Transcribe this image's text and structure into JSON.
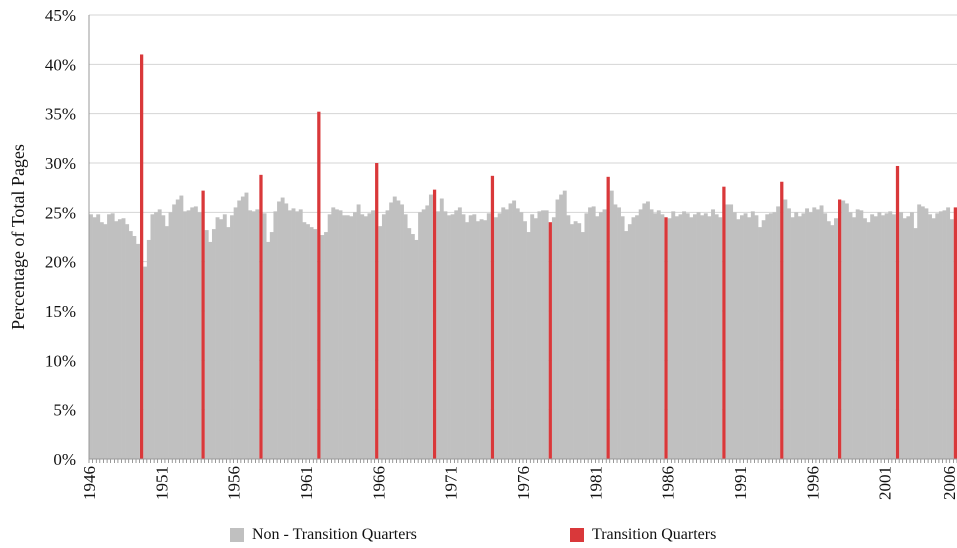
{
  "chart_data": {
    "type": "bar",
    "title": "",
    "xlabel": "",
    "ylabel": "Percentage of Total Pages",
    "ylim": [
      0,
      45
    ],
    "yticks": [
      "0%",
      "5%",
      "10%",
      "15%",
      "20%",
      "25%",
      "30%",
      "35%",
      "40%",
      "45%"
    ],
    "ytick_values": [
      0,
      5,
      10,
      15,
      20,
      25,
      30,
      35,
      40,
      45
    ],
    "xticks": [
      "1946",
      "1951",
      "1956",
      "1961",
      "1966",
      "1971",
      "1976",
      "1981",
      "1986",
      "1991",
      "1996",
      "2001",
      "2006"
    ],
    "x_start_year": 1946,
    "x_end_year": 2006,
    "quarters_per_year": 4,
    "grid": true,
    "legend_position": "bottom",
    "colors": {
      "non_transition": "#c0c0c0",
      "transition": "#d9383a",
      "grid": "#d4d4d4",
      "axis": "#999999"
    },
    "series": [
      {
        "name": "Non - Transition Quarters",
        "color": "#c0c0c0",
        "values": [
          24.8,
          24.5,
          24.8,
          24.0,
          23.8,
          24.8,
          24.9,
          24.1,
          24.3,
          24.4,
          23.8,
          23.1,
          22.6,
          21.8,
          0,
          19.5,
          22.2,
          24.8,
          25.0,
          25.3,
          24.7,
          23.6,
          25.0,
          25.8,
          26.3,
          26.7,
          25.1,
          25.2,
          25.5,
          25.6,
          25.0,
          0,
          23.2,
          22.0,
          23.3,
          24.5,
          24.3,
          24.8,
          23.5,
          24.7,
          25.5,
          26.2,
          26.6,
          27.0,
          25.2,
          25.1,
          25.3,
          0,
          24.9,
          22.0,
          23.0,
          25.1,
          26.1,
          26.5,
          25.9,
          25.2,
          25.4,
          25.1,
          25.3,
          24.0,
          23.8,
          23.5,
          23.3,
          0,
          22.7,
          23.0,
          24.8,
          25.5,
          25.3,
          25.2,
          24.7,
          24.7,
          24.6,
          25.0,
          25.8,
          24.8,
          24.6,
          24.9,
          25.2,
          0,
          23.6,
          24.8,
          25.2,
          26.0,
          26.6,
          26.2,
          25.8,
          24.8,
          23.4,
          22.8,
          22.2,
          25.0,
          25.3,
          25.7,
          26.8,
          0,
          25.1,
          26.4,
          25.1,
          24.7,
          24.8,
          25.2,
          25.5,
          24.8,
          24.0,
          24.7,
          24.8,
          24.1,
          24.3,
          24.2,
          24.9,
          0,
          24.5,
          24.9,
          25.5,
          25.3,
          25.9,
          26.2,
          25.4,
          25.0,
          24.1,
          23.0,
          24.8,
          24.4,
          25.1,
          25.2,
          25.2,
          0,
          24.5,
          26.3,
          26.8,
          27.2,
          24.7,
          23.8,
          24.1,
          23.9,
          23.0,
          24.9,
          25.5,
          25.6,
          24.6,
          25.0,
          25.3,
          0,
          27.2,
          25.8,
          25.5,
          24.6,
          23.1,
          23.8,
          24.5,
          24.7,
          25.3,
          25.9,
          26.1,
          25.3,
          24.9,
          25.2,
          24.8,
          0,
          24.4,
          25.1,
          24.6,
          24.8,
          25.1,
          24.9,
          24.5,
          24.8,
          25.0,
          24.7,
          24.9,
          24.6,
          25.3,
          24.8,
          24.5,
          0,
          25.8,
          25.8,
          25.0,
          24.3,
          24.7,
          24.9,
          24.5,
          25.1,
          24.7,
          23.5,
          24.2,
          24.8,
          24.9,
          25.0,
          25.6,
          0,
          26.3,
          25.4,
          24.5,
          25.0,
          24.6,
          24.9,
          25.4,
          25.0,
          25.5,
          25.3,
          25.7,
          24.9,
          24.1,
          23.7,
          24.4,
          0,
          26.2,
          25.9,
          25.0,
          24.5,
          25.3,
          25.2,
          24.4,
          24.0,
          24.8,
          24.6,
          25.0,
          24.7,
          24.9,
          25.1,
          24.8,
          0,
          25.0,
          24.4,
          24.6,
          25.0,
          23.4,
          25.8,
          25.6,
          25.4,
          24.8,
          24.4,
          24.9,
          25.1,
          25.2,
          25.5,
          24.3,
          0,
          24.8,
          24.3,
          25.4,
          24.6
        ]
      },
      {
        "name": "Transition Quarters",
        "color": "#d9383a",
        "values": [
          0,
          0,
          0,
          0,
          0,
          0,
          0,
          0,
          0,
          0,
          0,
          0,
          0,
          0,
          41.0,
          0,
          0,
          0,
          0,
          0,
          0,
          0,
          0,
          0,
          0,
          0,
          0,
          0,
          0,
          0,
          0,
          27.2,
          0,
          0,
          0,
          0,
          0,
          0,
          0,
          0,
          0,
          0,
          0,
          0,
          0,
          0,
          0,
          28.8,
          0,
          0,
          0,
          0,
          0,
          0,
          0,
          0,
          0,
          0,
          0,
          0,
          0,
          0,
          0,
          35.2,
          0,
          0,
          0,
          0,
          0,
          0,
          0,
          0,
          0,
          0,
          0,
          0,
          0,
          0,
          0,
          30.0,
          0,
          0,
          0,
          0,
          0,
          0,
          0,
          0,
          0,
          0,
          0,
          0,
          0,
          0,
          0,
          27.3,
          0,
          0,
          0,
          0,
          0,
          0,
          0,
          0,
          0,
          0,
          0,
          0,
          0,
          0,
          0,
          28.7,
          0,
          0,
          0,
          0,
          0,
          0,
          0,
          0,
          0,
          0,
          0,
          0,
          0,
          0,
          0,
          24.0,
          0,
          0,
          0,
          0,
          0,
          0,
          0,
          0,
          0,
          0,
          0,
          0,
          0,
          0,
          0,
          28.6,
          0,
          0,
          0,
          0,
          0,
          0,
          0,
          0,
          0,
          0,
          0,
          0,
          0,
          0,
          0,
          24.5,
          0,
          0,
          0,
          0,
          0,
          0,
          0,
          0,
          0,
          0,
          0,
          0,
          0,
          0,
          0,
          27.6,
          0,
          0,
          0,
          0,
          0,
          0,
          0,
          0,
          0,
          0,
          0,
          0,
          0,
          0,
          0,
          28.1,
          0,
          0,
          0,
          0,
          0,
          0,
          0,
          0,
          0,
          0,
          0,
          0,
          0,
          0,
          0,
          26.3,
          0,
          0,
          0,
          0,
          0,
          0,
          0,
          0,
          0,
          0,
          0,
          0,
          0,
          0,
          0,
          29.7,
          0,
          0,
          0,
          0,
          0,
          0,
          0,
          0,
          0,
          0,
          0,
          0,
          0,
          0,
          0,
          25.5,
          0,
          0,
          0,
          0
        ]
      }
    ]
  },
  "legend": {
    "non_transition_label": "Non - Transition Quarters",
    "transition_label": "Transition Quarters"
  }
}
